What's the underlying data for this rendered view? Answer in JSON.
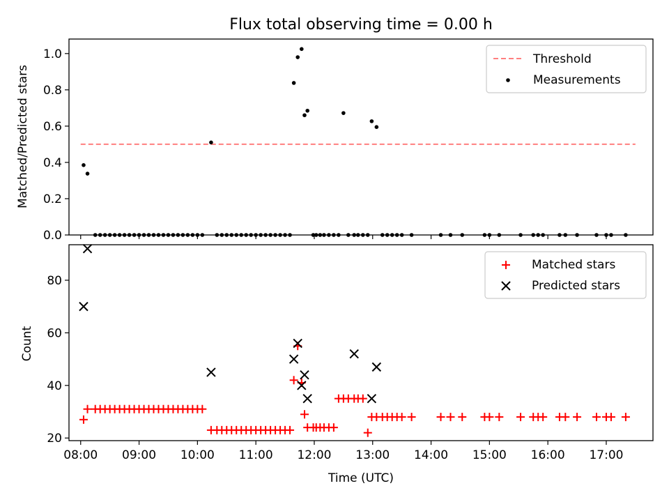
{
  "chart_data": [
    {
      "type": "scatter",
      "title": "Flux total observing time = 0.00 h",
      "xlabel": "",
      "ylabel": "Matched/Predicted stars",
      "ylim": [
        0,
        1.08
      ],
      "yticks": [
        "0.0",
        "0.2",
        "0.4",
        "0.6",
        "0.8",
        "1.0"
      ],
      "xlim": [
        "07:48",
        "17:48"
      ],
      "legend_position": "upper right",
      "threshold": {
        "name": "Threshold",
        "value": 0.5,
        "x_start": "08:00",
        "x_end": "17:30",
        "color": "#ff7f7f",
        "style": "dashed"
      },
      "series": [
        {
          "name": "Measurements",
          "color": "#000000",
          "x": [
            "08:03",
            "08:07",
            "08:15",
            "08:20",
            "08:25",
            "08:30",
            "08:35",
            "08:40",
            "08:45",
            "08:50",
            "08:55",
            "09:00",
            "09:05",
            "09:10",
            "09:15",
            "09:20",
            "09:25",
            "09:30",
            "09:35",
            "09:40",
            "09:45",
            "09:50",
            "09:55",
            "10:00",
            "10:05",
            "10:14",
            "10:20",
            "10:25",
            "10:30",
            "10:35",
            "10:40",
            "10:45",
            "10:50",
            "10:55",
            "11:00",
            "11:05",
            "11:10",
            "11:15",
            "11:20",
            "11:25",
            "11:30",
            "11:35",
            "11:39",
            "11:43",
            "11:47",
            "11:50",
            "11:53",
            "11:59",
            "12:02",
            "12:06",
            "12:10",
            "12:15",
            "12:20",
            "12:25",
            "12:30",
            "12:35",
            "12:41",
            "12:45",
            "12:50",
            "12:55",
            "12:59",
            "13:04",
            "13:10",
            "13:15",
            "13:20",
            "13:25",
            "13:30",
            "13:40",
            "14:10",
            "14:20",
            "14:32",
            "14:55",
            "15:00",
            "15:10",
            "15:32",
            "15:45",
            "15:50",
            "15:55",
            "16:12",
            "16:18",
            "16:30",
            "16:50",
            "17:00",
            "17:05",
            "17:20"
          ],
          "y": [
            0.385,
            0.338,
            0,
            0,
            0,
            0,
            0,
            0,
            0,
            0,
            0,
            0,
            0,
            0,
            0,
            0,
            0,
            0,
            0,
            0,
            0,
            0,
            0,
            0,
            0,
            0.51,
            0,
            0,
            0,
            0,
            0,
            0,
            0,
            0,
            0,
            0,
            0,
            0,
            0,
            0,
            0,
            0,
            0.838,
            0.98,
            1.025,
            0.66,
            0.685,
            0,
            0,
            0,
            0,
            0,
            0,
            0,
            0.672,
            0,
            0,
            0,
            0,
            0,
            0.627,
            0.595,
            0,
            0,
            0,
            0,
            0,
            0,
            0,
            0,
            0,
            0,
            0,
            0,
            0,
            0,
            0,
            0,
            0,
            0,
            0,
            0,
            0,
            0,
            0
          ]
        }
      ]
    },
    {
      "type": "scatter",
      "title": "",
      "xlabel": "Time (UTC)",
      "ylabel": "Count",
      "ylim": [
        19,
        93.5
      ],
      "yticks": [
        "20",
        "40",
        "60",
        "80"
      ],
      "xticks": [
        "08:00",
        "09:00",
        "10:00",
        "11:00",
        "12:00",
        "13:00",
        "14:00",
        "15:00",
        "16:00",
        "17:00"
      ],
      "xlim": [
        "07:48",
        "17:48"
      ],
      "legend_position": "upper right",
      "series": [
        {
          "name": "Matched stars",
          "color": "#ff0000",
          "marker": "plus",
          "x": [
            "08:03",
            "08:07",
            "08:15",
            "08:20",
            "08:25",
            "08:30",
            "08:35",
            "08:40",
            "08:45",
            "08:50",
            "08:55",
            "09:00",
            "09:05",
            "09:10",
            "09:15",
            "09:20",
            "09:25",
            "09:30",
            "09:35",
            "09:40",
            "09:45",
            "09:50",
            "09:55",
            "10:00",
            "10:05",
            "10:14",
            "10:20",
            "10:25",
            "10:30",
            "10:35",
            "10:40",
            "10:45",
            "10:50",
            "10:55",
            "11:00",
            "11:05",
            "11:10",
            "11:15",
            "11:20",
            "11:25",
            "11:30",
            "11:35",
            "11:39",
            "11:43",
            "11:47",
            "11:50",
            "11:53",
            "11:59",
            "12:02",
            "12:06",
            "12:10",
            "12:15",
            "12:20",
            "12:25",
            "12:30",
            "12:35",
            "12:41",
            "12:45",
            "12:50",
            "12:55",
            "12:59",
            "13:04",
            "13:10",
            "13:15",
            "13:20",
            "13:25",
            "13:30",
            "13:40",
            "14:10",
            "14:20",
            "14:32",
            "14:55",
            "15:00",
            "15:10",
            "15:32",
            "15:45",
            "15:50",
            "15:55",
            "16:12",
            "16:18",
            "16:30",
            "16:50",
            "17:00",
            "17:05",
            "17:20"
          ],
          "y": [
            27,
            31,
            31,
            31,
            31,
            31,
            31,
            31,
            31,
            31,
            31,
            31,
            31,
            31,
            31,
            31,
            31,
            31,
            31,
            31,
            31,
            31,
            31,
            31,
            31,
            23,
            23,
            23,
            23,
            23,
            23,
            23,
            23,
            23,
            23,
            23,
            23,
            23,
            23,
            23,
            23,
            23,
            42,
            55,
            41,
            29,
            24,
            24,
            24,
            24,
            24,
            24,
            24,
            35,
            35,
            35,
            35,
            35,
            35,
            22,
            28,
            28,
            28,
            28,
            28,
            28,
            28,
            28,
            28,
            28,
            28,
            28,
            28,
            28,
            28,
            28,
            28,
            28,
            28,
            28,
            28,
            28,
            28,
            28,
            28
          ]
        },
        {
          "name": "Predicted stars",
          "color": "#000000",
          "marker": "x",
          "x": [
            "08:03",
            "08:07",
            "10:14",
            "11:39",
            "11:43",
            "11:47",
            "11:50",
            "11:53",
            "12:41",
            "12:59",
            "13:04"
          ],
          "y": [
            70,
            92,
            45,
            50,
            56,
            40,
            44,
            35,
            52,
            35,
            47
          ]
        }
      ]
    }
  ]
}
